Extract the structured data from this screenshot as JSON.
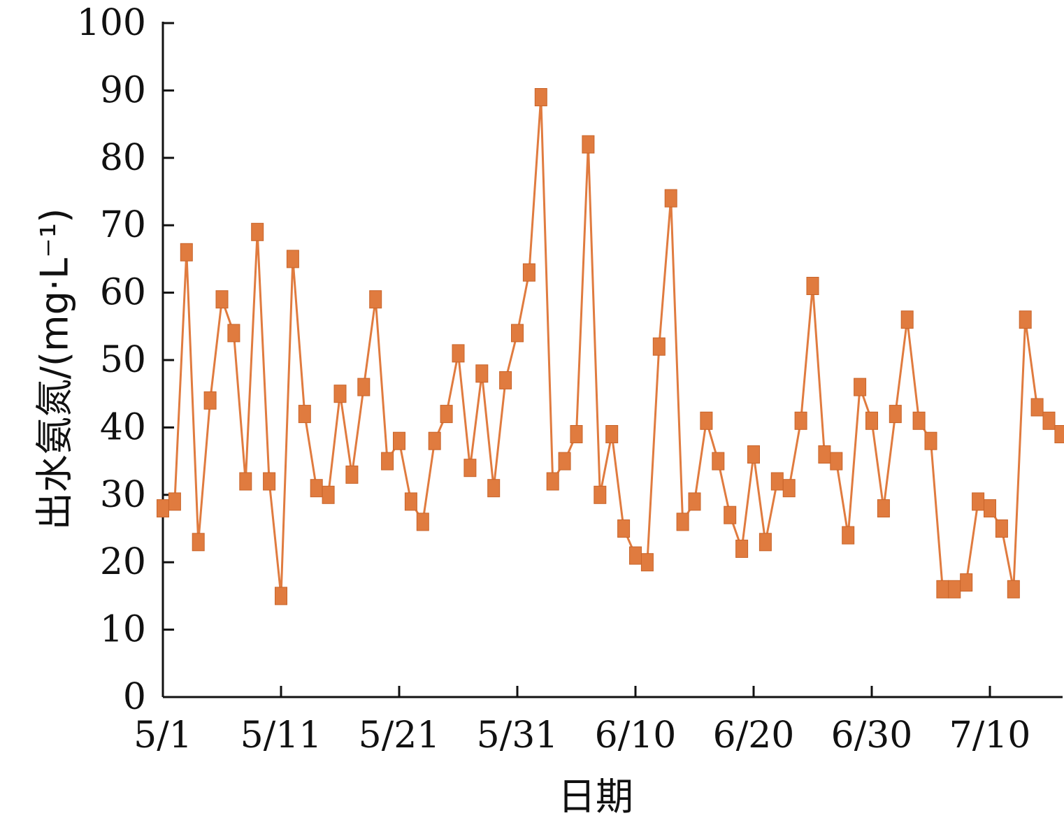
{
  "chart_data": {
    "type": "line",
    "xlabel": "日期",
    "ylabel": "出水氨氮/(mg·L⁻¹)",
    "ylim": [
      0,
      100
    ],
    "yticks": [
      0,
      10,
      20,
      30,
      40,
      50,
      60,
      70,
      80,
      90,
      100
    ],
    "xlim": [
      "5/1",
      "7/16"
    ],
    "xticks": [
      "5/1",
      "5/11",
      "5/21",
      "5/31",
      "6/10",
      "6/20",
      "6/30",
      "7/10"
    ],
    "grid": false,
    "legend": "none",
    "series": [
      {
        "color": "#E07B3F",
        "marker": "square",
        "x": [
          "5/1",
          "5/2",
          "5/3",
          "5/4",
          "5/5",
          "5/6",
          "5/7",
          "5/8",
          "5/9",
          "5/10",
          "5/11",
          "5/12",
          "5/13",
          "5/14",
          "5/15",
          "5/16",
          "5/17",
          "5/18",
          "5/19",
          "5/20",
          "5/21",
          "5/22",
          "5/23",
          "5/24",
          "5/25",
          "5/26",
          "5/27",
          "5/28",
          "5/29",
          "5/30",
          "5/31",
          "6/1",
          "6/2",
          "6/3",
          "6/4",
          "6/5",
          "6/6",
          "6/7",
          "6/8",
          "6/9",
          "6/10",
          "6/11",
          "6/12",
          "6/13",
          "6/14",
          "6/15",
          "6/16",
          "6/17",
          "6/18",
          "6/19",
          "6/20",
          "6/21",
          "6/22",
          "6/23",
          "6/24",
          "6/25",
          "6/26",
          "6/27",
          "6/28",
          "6/29",
          "6/30",
          "7/1",
          "7/2",
          "7/3",
          "7/4",
          "7/5",
          "7/6",
          "7/7",
          "7/8",
          "7/9",
          "7/10",
          "7/11",
          "7/12",
          "7/13",
          "7/14",
          "7/15",
          "7/16"
        ],
        "y": [
          28,
          29,
          66,
          23,
          44,
          59,
          54,
          32,
          69,
          32,
          15,
          65,
          42,
          31,
          30,
          45,
          33,
          46,
          59,
          35,
          38,
          29,
          26,
          38,
          42,
          51,
          34,
          48,
          31,
          47,
          54,
          63,
          89,
          32,
          35,
          39,
          82,
          30,
          39,
          25,
          21,
          20,
          52,
          74,
          26,
          29,
          41,
          35,
          27,
          22,
          36,
          23,
          32,
          31,
          41,
          61,
          36,
          35,
          24,
          46,
          41,
          28,
          42,
          56,
          41,
          38,
          16,
          16,
          17,
          29,
          28,
          25,
          16,
          56,
          43,
          41,
          39
        ]
      }
    ]
  }
}
